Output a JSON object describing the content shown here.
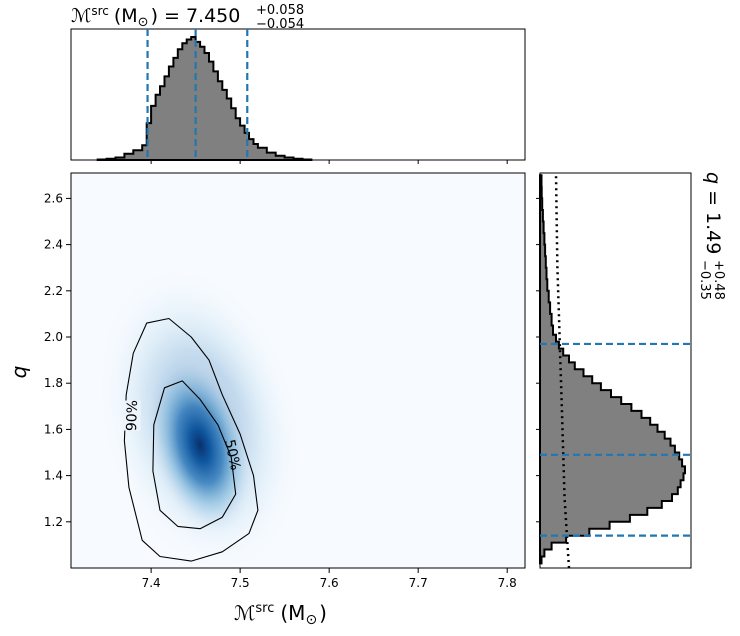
{
  "chart_data": [
    {
      "type": "histogram",
      "panel": "top-marginal",
      "title": {
        "symbol": "ℳ",
        "sup": "src",
        "unit": "(M",
        "sun": "⊙",
        "close": ")",
        "eq": "= 7.450",
        "plus": "+0.058",
        "minus": "−0.054"
      },
      "xlim": [
        7.31,
        7.82
      ],
      "median": 7.45,
      "quantiles": [
        7.396,
        7.508
      ],
      "bins": [
        [
          7.34,
          0.004
        ],
        [
          7.35,
          0.01
        ],
        [
          7.36,
          0.02
        ],
        [
          7.37,
          0.05
        ],
        [
          7.38,
          0.08
        ],
        [
          7.39,
          0.12
        ],
        [
          7.395,
          0.3
        ],
        [
          7.4,
          0.44
        ],
        [
          7.405,
          0.53
        ],
        [
          7.41,
          0.6
        ],
        [
          7.415,
          0.68
        ],
        [
          7.42,
          0.76
        ],
        [
          7.425,
          0.83
        ],
        [
          7.43,
          0.9
        ],
        [
          7.435,
          0.95
        ],
        [
          7.44,
          0.98
        ],
        [
          7.445,
          1.0
        ],
        [
          7.45,
          0.96
        ],
        [
          7.455,
          0.92
        ],
        [
          7.46,
          0.87
        ],
        [
          7.465,
          0.8
        ],
        [
          7.47,
          0.72
        ],
        [
          7.475,
          0.64
        ],
        [
          7.48,
          0.57
        ],
        [
          7.485,
          0.5
        ],
        [
          7.49,
          0.42
        ],
        [
          7.495,
          0.34
        ],
        [
          7.5,
          0.28
        ],
        [
          7.505,
          0.22
        ],
        [
          7.51,
          0.17
        ],
        [
          7.515,
          0.13
        ],
        [
          7.52,
          0.1
        ],
        [
          7.53,
          0.06
        ],
        [
          7.54,
          0.035
        ],
        [
          7.55,
          0.02
        ],
        [
          7.56,
          0.01
        ],
        [
          7.57,
          0.004
        ]
      ]
    },
    {
      "type": "heatmap",
      "panel": "joint",
      "xlabel": {
        "symbol": "ℳ",
        "sup": "src",
        "unit": "(M",
        "sun": "⊙",
        "close": ")"
      },
      "ylabel": "q",
      "xlim": [
        7.31,
        7.82
      ],
      "ylim": [
        1.0,
        2.71
      ],
      "xticks": [
        "7.4",
        "7.5",
        "7.6",
        "7.7",
        "7.8"
      ],
      "yticks": [
        "1.2",
        "1.4",
        "1.6",
        "1.8",
        "2.0",
        "2.2",
        "2.4",
        "2.6"
      ],
      "contours": [
        {
          "label": "90%",
          "points": [
            [
              7.39,
              1.12
            ],
            [
              7.41,
              1.05
            ],
            [
              7.445,
              1.03
            ],
            [
              7.48,
              1.07
            ],
            [
              7.51,
              1.15
            ],
            [
              7.52,
              1.25
            ],
            [
              7.515,
              1.4
            ],
            [
              7.5,
              1.58
            ],
            [
              7.48,
              1.75
            ],
            [
              7.465,
              1.9
            ],
            [
              7.445,
              2.0
            ],
            [
              7.42,
              2.08
            ],
            [
              7.395,
              2.06
            ],
            [
              7.38,
              1.93
            ],
            [
              7.372,
              1.75
            ],
            [
              7.37,
              1.55
            ],
            [
              7.375,
              1.35
            ]
          ]
        },
        {
          "label": "50%",
          "points": [
            [
              7.41,
              1.25
            ],
            [
              7.43,
              1.18
            ],
            [
              7.455,
              1.17
            ],
            [
              7.48,
              1.22
            ],
            [
              7.495,
              1.32
            ],
            [
              7.49,
              1.48
            ],
            [
              7.475,
              1.62
            ],
            [
              7.455,
              1.73
            ],
            [
              7.435,
              1.81
            ],
            [
              7.415,
              1.78
            ],
            [
              7.403,
              1.62
            ],
            [
              7.402,
              1.42
            ]
          ]
        }
      ]
    },
    {
      "type": "histogram",
      "orientation": "horizontal",
      "panel": "right-marginal",
      "title": {
        "symbol": "q",
        "eq": "= 1.49",
        "plus": "+0.48",
        "minus": "−0.35"
      },
      "ylim": [
        1.0,
        2.71
      ],
      "median": 1.49,
      "quantiles": [
        1.14,
        1.97
      ],
      "bins": [
        [
          1.02,
          0.01
        ],
        [
          1.05,
          0.03
        ],
        [
          1.08,
          0.08
        ],
        [
          1.11,
          0.18
        ],
        [
          1.14,
          0.34
        ],
        [
          1.17,
          0.48
        ],
        [
          1.2,
          0.62
        ],
        [
          1.23,
          0.74
        ],
        [
          1.26,
          0.84
        ],
        [
          1.29,
          0.91
        ],
        [
          1.32,
          0.95
        ],
        [
          1.35,
          0.97
        ],
        [
          1.38,
          0.99
        ],
        [
          1.41,
          1.0
        ],
        [
          1.44,
          0.98
        ],
        [
          1.47,
          0.96
        ],
        [
          1.5,
          0.93
        ],
        [
          1.53,
          0.9
        ],
        [
          1.56,
          0.86
        ],
        [
          1.59,
          0.81
        ],
        [
          1.62,
          0.76
        ],
        [
          1.65,
          0.7
        ],
        [
          1.68,
          0.63
        ],
        [
          1.71,
          0.56
        ],
        [
          1.74,
          0.49
        ],
        [
          1.77,
          0.42
        ],
        [
          1.8,
          0.36
        ],
        [
          1.83,
          0.3
        ],
        [
          1.86,
          0.24
        ],
        [
          1.89,
          0.2
        ],
        [
          1.92,
          0.16
        ],
        [
          1.95,
          0.13
        ],
        [
          1.98,
          0.11
        ],
        [
          2.01,
          0.09
        ],
        [
          2.05,
          0.08
        ],
        [
          2.1,
          0.07
        ],
        [
          2.15,
          0.06
        ],
        [
          2.2,
          0.05
        ],
        [
          2.25,
          0.045
        ],
        [
          2.3,
          0.04
        ],
        [
          2.35,
          0.035
        ],
        [
          2.4,
          0.03
        ],
        [
          2.45,
          0.025
        ],
        [
          2.5,
          0.02
        ],
        [
          2.55,
          0.015
        ],
        [
          2.6,
          0.012
        ],
        [
          2.65,
          0.01
        ]
      ],
      "prior_line": [
        [
          1.0,
          0.2
        ],
        [
          1.1,
          0.19
        ],
        [
          1.3,
          0.17
        ],
        [
          1.5,
          0.16
        ],
        [
          1.7,
          0.15
        ],
        [
          1.9,
          0.14
        ],
        [
          2.1,
          0.13
        ],
        [
          2.3,
          0.12
        ],
        [
          2.5,
          0.115
        ],
        [
          2.71,
          0.11
        ]
      ]
    }
  ]
}
